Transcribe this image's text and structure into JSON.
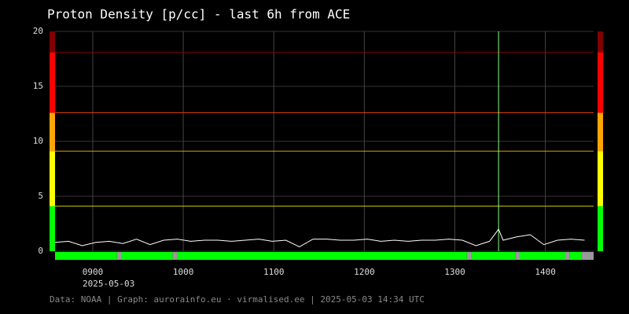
{
  "chart_data": {
    "type": "line",
    "title": "Proton Density [p/cc] - last 6h from ACE",
    "date_label": "2025-05-03",
    "footer": "Data: NOAA | Graph: aurorainfo.eu · virmalised.ee | 2025-05-03 14:34 UTC",
    "xlim": [
      515,
      872
    ],
    "xticks": [
      {
        "value": 540,
        "label": "0900"
      },
      {
        "value": 600,
        "label": "1000"
      },
      {
        "value": 660,
        "label": "1100"
      },
      {
        "value": 720,
        "label": "1200"
      },
      {
        "value": 780,
        "label": "1300"
      },
      {
        "value": 840,
        "label": "1400"
      }
    ],
    "ylim": [
      0,
      20
    ],
    "yticks": [
      0,
      5,
      10,
      15,
      20
    ],
    "grid": true,
    "series": [
      {
        "color": "#ffffff",
        "x": [
          515,
          524,
          533,
          542,
          551,
          560,
          569,
          578,
          587,
          596,
          605,
          614,
          623,
          632,
          641,
          650,
          659,
          668,
          677,
          686,
          695,
          704,
          713,
          722,
          731,
          740,
          749,
          758,
          767,
          776,
          785,
          794,
          803,
          809,
          812,
          821,
          830,
          839,
          848,
          857,
          866
        ],
        "values": [
          0.8,
          0.9,
          0.5,
          0.8,
          0.9,
          0.7,
          1.1,
          0.6,
          1.0,
          1.1,
          0.9,
          1.0,
          1.0,
          0.9,
          1.0,
          1.1,
          0.9,
          1.0,
          0.4,
          1.1,
          1.1,
          1.0,
          1.0,
          1.1,
          0.9,
          1.0,
          0.9,
          1.0,
          1.0,
          1.1,
          1.0,
          0.5,
          0.9,
          2.0,
          1.0,
          1.3,
          1.5,
          0.6,
          1.0,
          1.1,
          1.0
        ]
      }
    ],
    "thresholds": [
      {
        "value": 4.1,
        "color": "#cccc00"
      },
      {
        "value": 9.1,
        "color": "#e0a000"
      },
      {
        "value": 12.6,
        "color": "#e04000"
      },
      {
        "value": 18.1,
        "color": "#800000"
      }
    ],
    "bands": [
      {
        "from": 0,
        "to": 4.1,
        "color": "#00ff00"
      },
      {
        "from": 4.1,
        "to": 9.1,
        "color": "#ffff00"
      },
      {
        "from": 9.1,
        "to": 12.6,
        "color": "#ffa500"
      },
      {
        "from": 12.6,
        "to": 18.1,
        "color": "#ff0000"
      },
      {
        "from": 18.1,
        "to": 20,
        "color": "#800000"
      }
    ],
    "marker_x": 809,
    "marker_color": "#90ff90",
    "status": [
      {
        "start": 515,
        "end": 556,
        "color": "#00ff00"
      },
      {
        "start": 556,
        "end": 559,
        "color": "#999999"
      },
      {
        "start": 559,
        "end": 593,
        "color": "#00ff00"
      },
      {
        "start": 593,
        "end": 596,
        "color": "#999999"
      },
      {
        "start": 596,
        "end": 788,
        "color": "#00ff00"
      },
      {
        "start": 788,
        "end": 791,
        "color": "#999999"
      },
      {
        "start": 791,
        "end": 820,
        "color": "#00ff00"
      },
      {
        "start": 820,
        "end": 823,
        "color": "#999999"
      },
      {
        "start": 823,
        "end": 853,
        "color": "#00ff00"
      },
      {
        "start": 853,
        "end": 856,
        "color": "#999999"
      },
      {
        "start": 856,
        "end": 864,
        "color": "#00ff00"
      },
      {
        "start": 864,
        "end": 872,
        "color": "#999999"
      }
    ]
  }
}
